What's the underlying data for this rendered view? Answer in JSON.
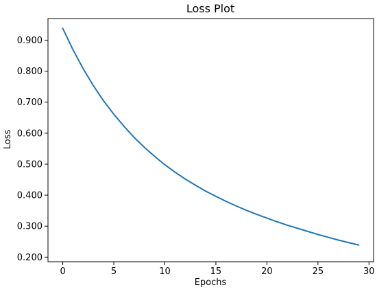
{
  "chart_data": {
    "type": "line",
    "title": "Loss Plot",
    "xlabel": "Epochs",
    "ylabel": "Loss",
    "xlim": [
      -1.45,
      30.45
    ],
    "ylim": [
      0.1852,
      0.9697
    ],
    "xticks": [
      0,
      5,
      10,
      15,
      20,
      25,
      30
    ],
    "xtick_labels": [
      "0",
      "5",
      "10",
      "15",
      "20",
      "25",
      "30"
    ],
    "yticks": [
      0.2,
      0.3,
      0.4,
      0.5,
      0.6,
      0.7,
      0.8,
      0.9
    ],
    "ytick_labels": [
      "0.200",
      "0.300",
      "0.400",
      "0.500",
      "0.600",
      "0.700",
      "0.800",
      "0.900"
    ],
    "grid": false,
    "series": [
      {
        "color": "#1f77b4",
        "x": [
          0,
          1,
          2,
          3,
          4,
          5,
          6,
          7,
          8,
          9,
          10,
          11,
          12,
          13,
          14,
          15,
          16,
          17,
          18,
          19,
          20,
          21,
          22,
          23,
          24,
          25,
          26,
          27,
          28,
          29
        ],
        "y": [
          0.938,
          0.869,
          0.808,
          0.753,
          0.704,
          0.661,
          0.622,
          0.586,
          0.554,
          0.525,
          0.498,
          0.474,
          0.452,
          0.432,
          0.413,
          0.396,
          0.38,
          0.365,
          0.351,
          0.338,
          0.326,
          0.314,
          0.303,
          0.293,
          0.283,
          0.273,
          0.264,
          0.255,
          0.247,
          0.239
        ]
      }
    ]
  }
}
